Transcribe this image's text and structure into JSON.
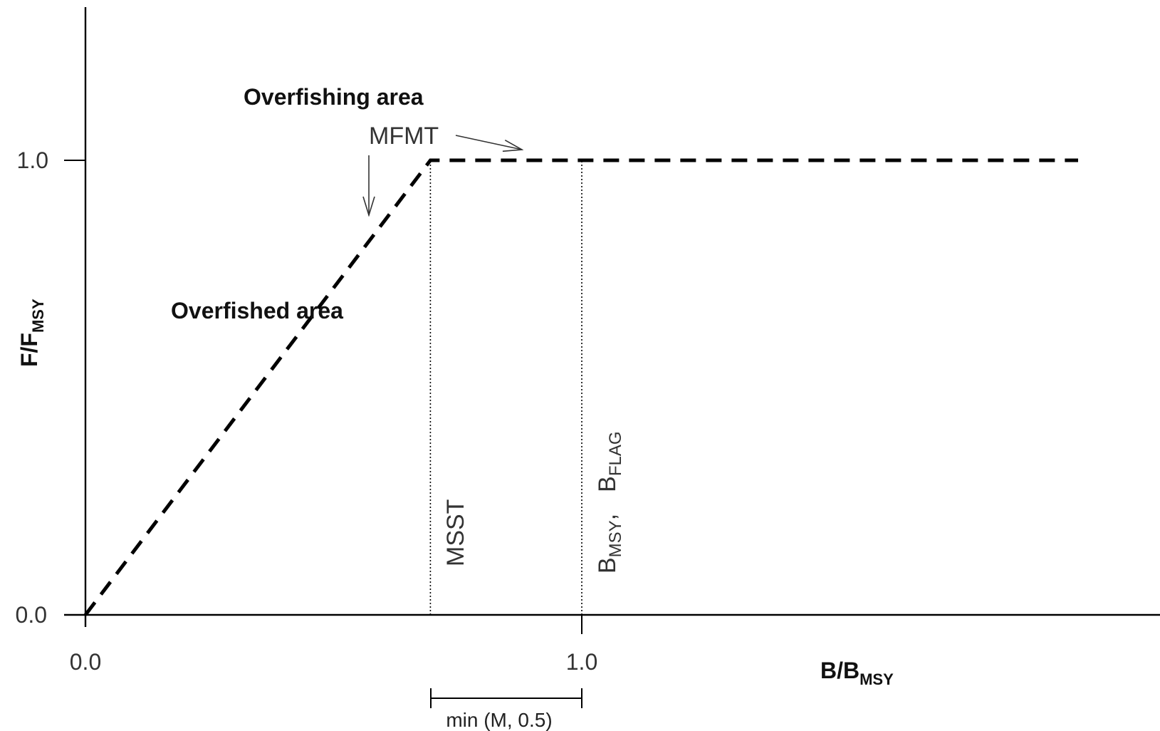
{
  "chart_data": {
    "type": "line",
    "title": "",
    "xlabel": {
      "main": "B/B",
      "sub": "MSY"
    },
    "ylabel": {
      "main": "F/F",
      "sub": "MSY"
    },
    "xlim": [
      0,
      2.165
    ],
    "ylim": [
      0,
      1.333
    ],
    "x_ticks": [
      {
        "value": 0.0,
        "label": "0.0"
      },
      {
        "value": 1.0,
        "label": "1.0"
      }
    ],
    "y_ticks": [
      {
        "value": 0.0,
        "label": "0.0"
      },
      {
        "value": 1.0,
        "label": "1.0"
      }
    ],
    "series": [
      {
        "style": "dashed",
        "color": "#000000",
        "x": [
          0.0,
          0.695,
          2.0
        ],
        "y": [
          0.0,
          1.0,
          1.0
        ]
      }
    ],
    "reference_lines": [
      {
        "x": 0.695,
        "style": "dotted",
        "label": "MSST"
      },
      {
        "x": 1.0,
        "style": "dotted",
        "label": {
          "b1": "B",
          "s1": "MSY",
          "sep": ",",
          "b2": "B",
          "s2": "FLAG"
        }
      }
    ],
    "annotations": {
      "overfishing_area": "Overfishing area",
      "overfished_area": "Overfished area",
      "mfmt": "MFMT",
      "bracket_label": "min (M, 0.5)"
    },
    "grid": false,
    "legend": "none"
  }
}
